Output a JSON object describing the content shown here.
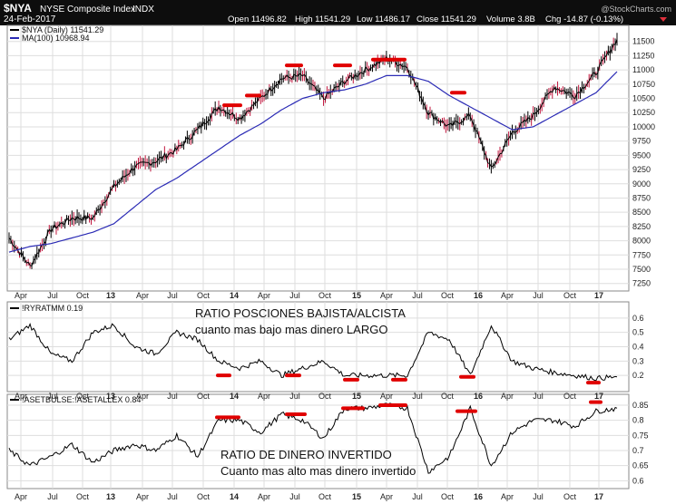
{
  "header": {
    "symbol": "$NYA",
    "name": "NYSE Composite Index",
    "exchange": "INDX",
    "date": "24-Feb-2017",
    "open": "Open 11496.82",
    "high": "High 11541.29",
    "low": "Low 11486.17",
    "close": "Close 11541.29",
    "volume": "Volume 3.8B",
    "chg": "Chg -14.87 (-0.13%)",
    "watermark": "@StockCharts.com"
  },
  "colors": {
    "header_bg": "#0d0d0d",
    "price": "#000000",
    "ma": "#2b2bb5",
    "marker": "#e00000",
    "grid": "#dedede",
    "border": "#8a8a8a",
    "down_candle": "#c0143c"
  },
  "legend": {
    "main": "$NYA (Daily) 11541.29",
    "ma": "MA(100) 10968.94",
    "ratio": "!RYRATMM 0.19",
    "money": "!ASETBULSE:!ASETALLEX 0.84"
  },
  "annotations": {
    "ratio_title": "RATIO POSCIONES BAJISTA/ALCISTA",
    "ratio_sub": "cuanto mas bajo mas dinero LARGO",
    "money_title": "RATIO DE DINERO INVERTIDO",
    "money_sub": "Cuanto mas alto mas dinero invertido"
  },
  "x_axis_labels": [
    "Apr",
    "Jul",
    "Oct",
    "13",
    "Apr",
    "Jul",
    "Oct",
    "14",
    "Apr",
    "Jul",
    "Oct",
    "15",
    "Apr",
    "Jul",
    "Oct",
    "16",
    "Apr",
    "Jul",
    "Oct",
    "17"
  ],
  "chart_data": [
    {
      "type": "line",
      "panel": "main",
      "title": "$NYA NYSE Composite Index INDX",
      "x": [
        "2012-04",
        "2012-06",
        "2012-08",
        "2012-10",
        "2012-12",
        "2013-02",
        "2013-04",
        "2013-06",
        "2013-08",
        "2013-10",
        "2013-12",
        "2014-02",
        "2014-04",
        "2014-06",
        "2014-08",
        "2014-10",
        "2014-12",
        "2015-02",
        "2015-04",
        "2015-06",
        "2015-08",
        "2015-10",
        "2015-12",
        "2016-02",
        "2016-04",
        "2016-06",
        "2016-08",
        "2016-10",
        "2016-12",
        "2017-02"
      ],
      "series": [
        {
          "name": "$NYA (Daily) 11541.29",
          "values": [
            8050,
            7550,
            8200,
            8400,
            8400,
            8950,
            9300,
            9400,
            9600,
            9950,
            10350,
            10150,
            10500,
            10850,
            10900,
            10500,
            10800,
            11000,
            11200,
            11050,
            10250,
            10000,
            10200,
            9250,
            9900,
            10200,
            10700,
            10550,
            10950,
            11540
          ]
        },
        {
          "name": "MA(100) 10968.94",
          "values": [
            7800,
            7900,
            7950,
            8050,
            8150,
            8300,
            8600,
            8900,
            9100,
            9350,
            9600,
            9850,
            10050,
            10300,
            10500,
            10600,
            10650,
            10750,
            10900,
            10900,
            10800,
            10550,
            10350,
            10150,
            9950,
            10000,
            10200,
            10400,
            10600,
            10970
          ]
        }
      ],
      "ylim": [
        7150,
        11750
      ],
      "yticks": [
        7250,
        7500,
        7750,
        8000,
        8250,
        8500,
        8750,
        9000,
        9250,
        9500,
        9750,
        10000,
        10250,
        10500,
        10750,
        11000,
        11250,
        11500
      ],
      "markers": [
        10380,
        10550,
        11080,
        11080,
        11180,
        10600
      ]
    },
    {
      "type": "line",
      "panel": "ratio",
      "x": [
        "2012-04",
        "2012-06",
        "2012-08",
        "2012-10",
        "2012-12",
        "2013-02",
        "2013-04",
        "2013-06",
        "2013-08",
        "2013-10",
        "2013-12",
        "2014-02",
        "2014-04",
        "2014-06",
        "2014-08",
        "2014-10",
        "2014-12",
        "2015-02",
        "2015-04",
        "2015-06",
        "2015-08",
        "2015-10",
        "2015-12",
        "2016-02",
        "2016-04",
        "2016-06",
        "2016-08",
        "2016-10",
        "2016-12",
        "2017-02"
      ],
      "series": [
        {
          "name": "!RYRATMM 0.19",
          "values": [
            0.45,
            0.55,
            0.35,
            0.3,
            0.5,
            0.55,
            0.4,
            0.35,
            0.5,
            0.45,
            0.3,
            0.25,
            0.3,
            0.2,
            0.25,
            0.3,
            0.2,
            0.2,
            0.2,
            0.2,
            0.5,
            0.45,
            0.2,
            0.55,
            0.3,
            0.25,
            0.22,
            0.2,
            0.18,
            0.19
          ]
        }
      ],
      "ylim": [
        0.1,
        0.7
      ],
      "yticks": [
        0.2,
        0.3,
        0.4,
        0.5,
        0.6
      ],
      "markers": [
        0.2,
        0.2,
        0.17,
        0.17,
        0.19,
        0.15
      ]
    },
    {
      "type": "line",
      "panel": "money",
      "x": [
        "2012-04",
        "2012-06",
        "2012-08",
        "2012-10",
        "2012-12",
        "2013-02",
        "2013-04",
        "2013-06",
        "2013-08",
        "2013-10",
        "2013-12",
        "2014-02",
        "2014-04",
        "2014-06",
        "2014-08",
        "2014-10",
        "2014-12",
        "2015-02",
        "2015-04",
        "2015-06",
        "2015-08",
        "2015-10",
        "2015-12",
        "2016-02",
        "2016-04",
        "2016-06",
        "2016-08",
        "2016-10",
        "2016-12",
        "2017-02"
      ],
      "series": [
        {
          "name": "!ASETBULSE:!ASETALLEX 0.84",
          "values": [
            0.7,
            0.65,
            0.68,
            0.72,
            0.66,
            0.7,
            0.72,
            0.7,
            0.75,
            0.68,
            0.8,
            0.8,
            0.76,
            0.82,
            0.8,
            0.74,
            0.84,
            0.84,
            0.85,
            0.84,
            0.63,
            0.68,
            0.84,
            0.65,
            0.76,
            0.8,
            0.8,
            0.78,
            0.83,
            0.84
          ]
        }
      ],
      "ylim": [
        0.58,
        0.88
      ],
      "yticks": [
        0.6,
        0.65,
        0.7,
        0.75,
        0.8,
        0.85
      ],
      "markers": [
        0.81,
        0.82,
        0.84,
        0.85,
        0.83,
        0.86
      ]
    }
  ]
}
